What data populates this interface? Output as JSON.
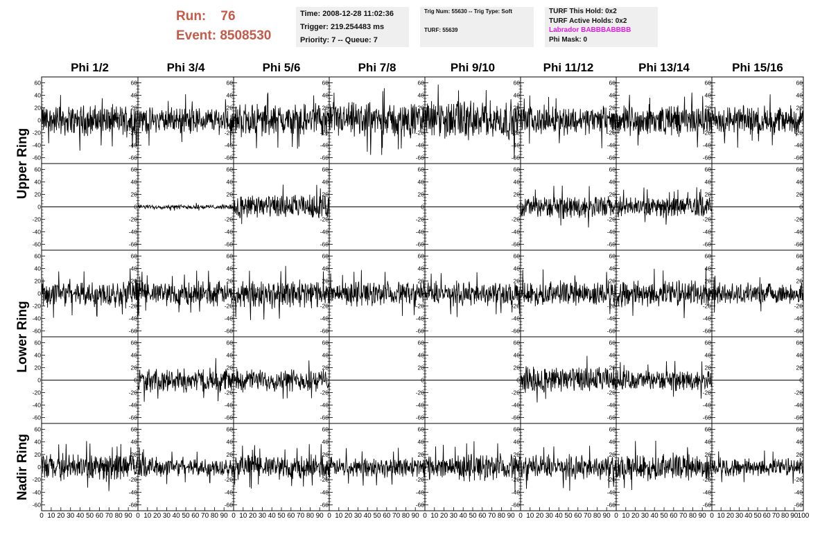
{
  "run_info": {
    "run_label": "Run:",
    "run_value": "76",
    "event_label": "Event:",
    "event_value": "8508530"
  },
  "time_box": {
    "time": "Time: 2008-12-28 11:02:36",
    "trigger": "Trigger: 219.254483 ms",
    "priority": "Priority: 7 -- Queue: 7"
  },
  "trig_box": {
    "trig_line": "Trig Num: 55630 -- Trig Type: Soft",
    "turf_line": "TURF: 55639"
  },
  "turf_box": {
    "this_hold": "TURF This Hold: 0x2",
    "active_holds": "TURF Active Holds: 0x2",
    "labrador": "Labrador BABBBABBBB",
    "phi_mask": "Phi Mask: 0"
  },
  "colors": {
    "run_text": "#c65a4a",
    "labrador_text": "#e21ce2",
    "trace": "#000000",
    "info_bg": "#efefef"
  },
  "column_headers": [
    "Phi 1/2",
    "Phi 3/4",
    "Phi 5/6",
    "Phi 7/8",
    "Phi 9/10",
    "Phi 11/12",
    "Phi 13/14",
    "Phi 15/16"
  ],
  "ring_labels": [
    "Upper Ring",
    "Lower Ring",
    "Nadir Ring"
  ],
  "y_tick_labels": [
    "60",
    "40",
    "20",
    "0",
    "-20",
    "-40",
    "-60"
  ],
  "x_tick_labels": [
    "0",
    "10",
    "20",
    "30",
    "40",
    "50",
    "60",
    "70",
    "80",
    "90",
    "100"
  ],
  "chart_data": {
    "type": "line",
    "ylim": [
      -65,
      65
    ],
    "xlim": [
      0,
      100
    ],
    "grid": false,
    "rows": [
      {
        "ring": "Upper Ring",
        "amplitudes": [
          14,
          12,
          15,
          16,
          18,
          13,
          14,
          13
        ]
      },
      {
        "ring": "Upper Ring",
        "amplitudes": [
          0,
          2,
          11,
          0,
          0,
          10,
          9,
          0
        ]
      },
      {
        "ring": "Lower Ring",
        "amplitudes": [
          13,
          11,
          13,
          11,
          11,
          11,
          12,
          9
        ]
      },
      {
        "ring": "Lower Ring",
        "amplitudes": [
          0,
          11,
          10,
          0,
          0,
          12,
          9,
          0
        ]
      },
      {
        "ring": "Nadir Ring",
        "amplitudes": [
          12,
          9,
          11,
          9,
          12,
          11,
          12,
          8
        ]
      }
    ]
  }
}
